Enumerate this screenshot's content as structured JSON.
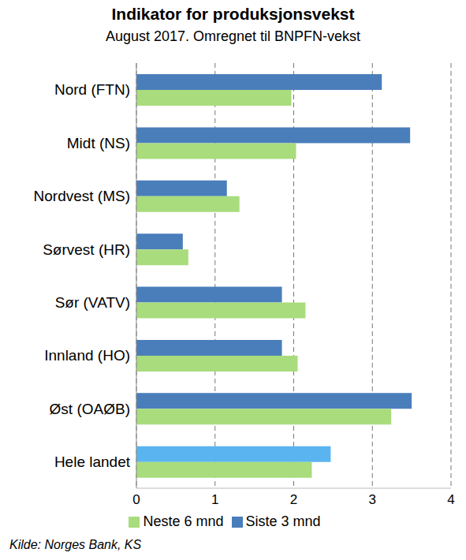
{
  "chart_data": {
    "type": "bar",
    "orientation": "horizontal",
    "title": "Indikator for produksjonsvekst",
    "subtitle": "August 2017. Omregnet til BNPFN-vekst",
    "source": "Kilde: Norges Bank, KS",
    "categories": [
      "Nord (FTN)",
      "Midt (NS)",
      "Nordvest (MS)",
      "Sørvest (HR)",
      "Sør (VATV)",
      "Innland (HO)",
      "Øst (OAØB)",
      "Hele landet"
    ],
    "series": [
      {
        "name": "Siste 3 mnd",
        "color": "#4a7ebb",
        "colors": [
          "#4a7ebb",
          "#4a7ebb",
          "#4a7ebb",
          "#4a7ebb",
          "#4a7ebb",
          "#4a7ebb",
          "#4a7ebb",
          "#5ab4f0"
        ],
        "values": [
          3.12,
          3.48,
          1.15,
          0.59,
          1.85,
          1.85,
          3.5,
          2.47
        ]
      },
      {
        "name": "Neste 6 mnd",
        "color": "#a9dc7c",
        "values": [
          1.97,
          2.03,
          1.31,
          0.66,
          2.15,
          2.05,
          3.24,
          2.23
        ]
      }
    ],
    "xlim": [
      0,
      4
    ],
    "xticks": [
      0,
      1,
      2,
      3,
      4
    ],
    "grid": true,
    "legend": "bottom"
  }
}
